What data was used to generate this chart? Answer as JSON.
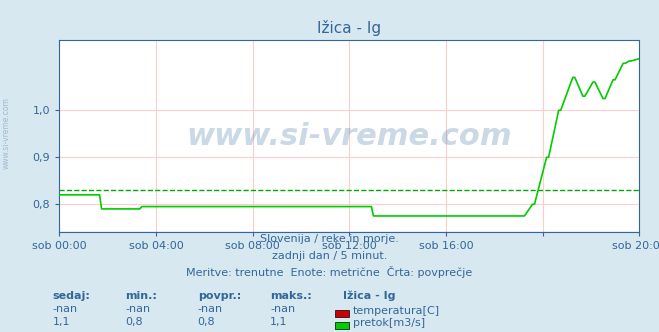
{
  "title": "Ižica - Ig",
  "bg_color": "#d8e8f0",
  "plot_bg_color": "#ffffff",
  "grid_color_h": "#ffcccc",
  "grid_color_v": "#ffcccc",
  "avg_line_color": "#00aa00",
  "avg_line_value": 0.83,
  "blue_line_color": "#0000cc",
  "blue_line_value": 0.74,
  "green_line_color": "#00cc00",
  "ylabel_color": "#336699",
  "title_color": "#336699",
  "text_color": "#336699",
  "subtitle_lines": [
    "Slovenija / reke in morje.",
    "zadnji dan / 5 minut.",
    "Meritve: trenutne  Enote: metrične  Črta: povprečje"
  ],
  "watermark": "www.si-vreme.com",
  "watermark_color": "#336699",
  "watermark_alpha": 0.25,
  "xlim": [
    0,
    288
  ],
  "ylim": [
    0.74,
    1.15
  ],
  "yticks": [
    0.8,
    0.9,
    1.0
  ],
  "ytick_labels": [
    "0,8",
    "0,9",
    "1,0"
  ],
  "xtick_positions": [
    0,
    48,
    96,
    144,
    192,
    240,
    288
  ],
  "xtick_labels": [
    "sob 00:00",
    "sob 04:00",
    "sob 08:00",
    "sob 12:00",
    "sob 16:00",
    "",
    "sob 20:00"
  ],
  "legend_title": "Ižica - Ig",
  "legend_items": [
    {
      "label": "temperatura[C]",
      "color": "#cc0000"
    },
    {
      "label": "pretok[m3/s]",
      "color": "#00cc00"
    }
  ],
  "table_headers": [
    "sedaj:",
    "min.:",
    "povpr.:",
    "maks.:"
  ],
  "table_rows": [
    [
      "-nan",
      "-nan",
      "-nan",
      "-nan"
    ],
    [
      "1,1",
      "0,8",
      "0,8",
      "1,1"
    ]
  ],
  "flow_data_x": [
    0,
    20,
    21,
    40,
    41,
    155,
    156,
    220,
    221,
    230,
    231,
    235,
    236,
    242,
    243,
    248,
    249,
    255,
    256,
    260,
    261,
    265,
    266,
    270,
    271,
    275,
    276,
    280,
    281,
    283,
    284,
    288
  ],
  "flow_data_y": [
    0.82,
    0.82,
    0.79,
    0.79,
    0.795,
    0.795,
    0.775,
    0.775,
    0.775,
    0.775,
    0.775,
    0.8,
    0.8,
    0.9,
    0.9,
    1.0,
    1.0,
    1.07,
    1.07,
    1.03,
    1.03,
    1.06,
    1.06,
    1.025,
    1.025,
    1.065,
    1.065,
    1.1,
    1.1,
    1.105,
    1.105,
    1.11
  ],
  "temp_data_x": [],
  "temp_data_y": []
}
